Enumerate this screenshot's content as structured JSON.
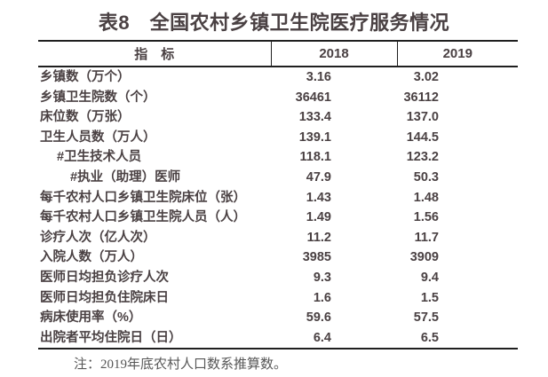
{
  "title": "表8　全国农村乡镇卫生院医疗服务情况",
  "table": {
    "headers": {
      "indicator": "指　标",
      "y2018": "2018",
      "y2019": "2019"
    },
    "rows": [
      {
        "label": "乡镇数（万个）",
        "v2018": "3.16",
        "v2019": "3.02"
      },
      {
        "label": "乡镇卫生院数（个）",
        "v2018": "36461",
        "v2019": "36112"
      },
      {
        "label": "床位数（万张）",
        "v2018": "133.4",
        "v2019": "137.0"
      },
      {
        "label": "卫生人员数（万人）",
        "v2018": "139.1",
        "v2019": "144.5"
      },
      {
        "label": "#卫生技术人员",
        "v2018": "118.1",
        "v2019": "123.2"
      },
      {
        "label": "#执业（助理）医师",
        "v2018": "47.9",
        "v2019": "50.3"
      },
      {
        "label": "每千农村人口乡镇卫生院床位（张）",
        "v2018": "1.43",
        "v2019": "1.48"
      },
      {
        "label": "每千农村人口乡镇卫生院人员（人）",
        "v2018": "1.49",
        "v2019": "1.56"
      },
      {
        "label": "诊疗人次（亿人次）",
        "v2018": "11.2",
        "v2019": "11.7"
      },
      {
        "label": "入院人数（万人）",
        "v2018": "3985",
        "v2019": "3909"
      },
      {
        "label": "医师日均担负诊疗人次",
        "v2018": "9.3",
        "v2019": "9.4"
      },
      {
        "label": "医师日均担负住院床日",
        "v2018": "1.6",
        "v2019": "1.5"
      },
      {
        "label": "病床使用率（%）",
        "v2018": "59.6",
        "v2019": "57.5"
      },
      {
        "label": "出院者平均住院日（日）",
        "v2018": "6.4",
        "v2019": "6.5"
      }
    ]
  },
  "note": "注：2019年底农村人口数系推算数。",
  "colors": {
    "background": "#ffffff",
    "text": "#4a4143",
    "border": "#1f1f1f",
    "note_text": "#575757"
  }
}
